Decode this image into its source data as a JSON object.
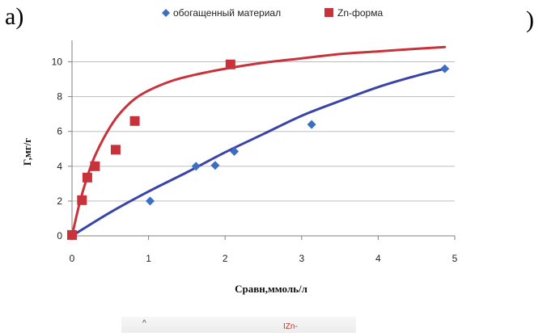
{
  "panel_label": "а)",
  "closing_paren": ")",
  "footer": {
    "caret": "^",
    "zn_text": "IZn-"
  },
  "colors": {
    "series1": "#3a44a8",
    "series2": "#c8323b",
    "grid": "#bdbdbd",
    "axis": "#7f7f7f"
  },
  "chart_data": {
    "type": "scatter",
    "xlabel": "Сравн,ммоль/л",
    "ylabel": "Г,мг/г",
    "xlim": [
      0,
      5
    ],
    "ylim": [
      0,
      11
    ],
    "xticks": [
      0,
      1,
      2,
      3,
      4,
      5
    ],
    "yticks": [
      0,
      2,
      4,
      6,
      8,
      10
    ],
    "grid": "horizontal",
    "legend": "top",
    "series": [
      {
        "name": "обогащенный материал",
        "marker": "diamond",
        "points": [
          [
            0,
            0
          ],
          [
            1.02,
            2.0
          ],
          [
            1.62,
            4.0
          ],
          [
            1.87,
            4.05
          ],
          [
            2.12,
            4.85
          ],
          [
            3.13,
            6.4
          ],
          [
            4.87,
            9.6
          ]
        ],
        "fit_curve": [
          [
            0,
            0
          ],
          [
            0.5,
            1.35
          ],
          [
            1,
            2.55
          ],
          [
            1.5,
            3.65
          ],
          [
            2,
            4.8
          ],
          [
            2.5,
            5.85
          ],
          [
            3,
            6.9
          ],
          [
            3.5,
            7.75
          ],
          [
            4,
            8.55
          ],
          [
            4.5,
            9.2
          ],
          [
            4.87,
            9.6
          ]
        ]
      },
      {
        "name": "Zn-форма",
        "marker": "square",
        "points": [
          [
            0,
            0.05
          ],
          [
            0.13,
            2.05
          ],
          [
            0.2,
            3.35
          ],
          [
            0.3,
            4.0
          ],
          [
            0.57,
            4.95
          ],
          [
            0.82,
            6.6
          ],
          [
            2.07,
            9.85
          ]
        ],
        "fit_curve": [
          [
            0,
            0
          ],
          [
            0.1,
            1.9
          ],
          [
            0.2,
            3.4
          ],
          [
            0.3,
            4.6
          ],
          [
            0.45,
            5.9
          ],
          [
            0.6,
            6.9
          ],
          [
            0.8,
            7.8
          ],
          [
            1,
            8.35
          ],
          [
            1.3,
            8.9
          ],
          [
            1.6,
            9.25
          ],
          [
            2,
            9.6
          ],
          [
            2.5,
            9.95
          ],
          [
            3,
            10.2
          ],
          [
            3.5,
            10.45
          ],
          [
            4,
            10.6
          ],
          [
            4.5,
            10.75
          ],
          [
            4.87,
            10.85
          ]
        ]
      }
    ]
  }
}
